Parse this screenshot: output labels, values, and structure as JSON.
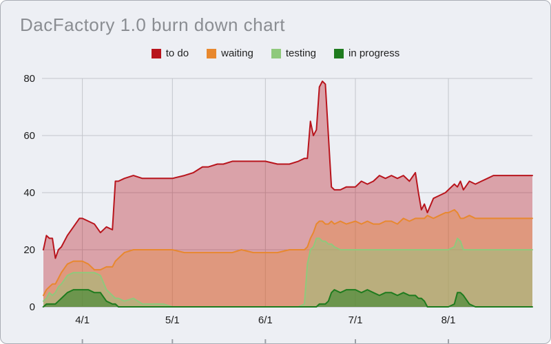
{
  "window": {
    "title": "DacFactory 1.0 burn down chart"
  },
  "chart_data": {
    "type": "area",
    "title": "DacFactory 1.0 burn down chart",
    "legend_position": "top",
    "grid": true,
    "xlim": [
      0,
      163
    ],
    "ylim": [
      0,
      80
    ],
    "y_ticks": [
      0,
      20,
      40,
      60,
      80
    ],
    "x_ticks": [
      {
        "label": "4/1",
        "x": 13
      },
      {
        "label": "5/1",
        "x": 43
      },
      {
        "label": "6/1",
        "x": 74
      },
      {
        "label": "7/1",
        "x": 104
      },
      {
        "label": "8/1",
        "x": 135
      }
    ],
    "x": [
      0,
      1,
      2,
      3,
      4,
      5,
      6,
      8,
      10,
      12,
      13,
      15,
      17,
      19,
      21,
      23,
      24,
      25,
      27,
      30,
      33,
      36,
      40,
      43,
      47,
      50,
      53,
      55,
      58,
      60,
      63,
      66,
      70,
      74,
      78,
      82,
      85,
      87,
      88,
      89,
      90,
      91,
      92,
      93,
      94,
      95,
      96,
      97,
      99,
      101,
      104,
      106,
      108,
      110,
      112,
      114,
      116,
      118,
      120,
      122,
      124,
      125,
      126,
      127,
      128,
      130,
      132,
      134,
      135,
      137,
      138,
      139,
      140,
      142,
      144,
      146,
      148,
      150,
      153,
      156,
      160,
      163
    ],
    "series": [
      {
        "name": "to do",
        "color": "#b8141c",
        "fill_opacity": 0.35,
        "values": [
          20,
          25,
          24,
          24,
          17,
          20,
          21,
          25,
          28,
          31,
          31,
          30,
          29,
          26,
          28,
          27,
          44,
          44,
          45,
          46,
          45,
          45,
          45,
          45,
          46,
          47,
          49,
          49,
          50,
          50,
          51,
          51,
          51,
          51,
          50,
          50,
          51,
          52,
          52,
          65,
          60,
          62,
          77,
          79,
          78,
          60,
          42,
          41,
          41,
          42,
          42,
          44,
          43,
          44,
          46,
          45,
          46,
          45,
          46,
          44,
          47,
          40,
          34,
          36,
          33,
          38,
          39,
          40,
          41,
          43,
          42,
          44,
          41,
          44,
          43,
          44,
          45,
          46,
          46,
          46,
          46,
          46
        ]
      },
      {
        "name": "waiting",
        "color": "#e8882e",
        "fill_opacity": 0.35,
        "values": [
          4,
          6,
          7,
          8,
          8,
          10,
          12,
          15,
          16,
          16,
          16,
          15,
          13,
          13,
          14,
          14,
          16,
          17,
          19,
          20,
          20,
          20,
          20,
          20,
          19,
          19,
          19,
          19,
          19,
          19,
          19,
          20,
          19,
          19,
          19,
          20,
          20,
          20,
          21,
          24,
          26,
          29,
          30,
          30,
          29,
          29,
          30,
          29,
          30,
          29,
          30,
          29,
          30,
          29,
          29,
          30,
          30,
          29,
          31,
          30,
          31,
          31,
          31,
          31,
          32,
          31,
          32,
          33,
          33,
          34,
          33,
          31,
          31,
          32,
          31,
          31,
          31,
          31,
          31,
          31,
          31,
          31
        ]
      },
      {
        "name": "testing",
        "color": "#8fc97c",
        "fill_opacity": 0.45,
        "values": [
          2,
          3,
          5,
          4,
          5,
          7,
          8,
          11,
          12,
          12,
          12,
          12,
          12,
          11,
          6,
          4,
          3,
          3,
          2,
          3,
          1,
          1,
          1,
          0,
          0,
          0,
          0,
          0,
          0,
          0,
          0,
          0,
          0,
          0,
          0,
          0,
          0,
          1,
          15,
          20,
          21,
          24,
          24,
          23,
          23,
          22,
          22,
          21,
          20,
          20,
          20,
          20,
          20,
          20,
          20,
          20,
          20,
          20,
          20,
          20,
          20,
          20,
          20,
          20,
          20,
          20,
          20,
          20,
          20,
          21,
          24,
          23,
          20,
          20,
          20,
          20,
          20,
          20,
          20,
          20,
          20,
          20
        ]
      },
      {
        "name": "in progress",
        "color": "#1e7b1e",
        "fill_opacity": 0.5,
        "values": [
          0,
          1,
          1,
          1,
          1,
          2,
          3,
          5,
          6,
          6,
          6,
          6,
          5,
          5,
          2,
          1,
          1,
          0,
          0,
          0,
          0,
          0,
          0,
          0,
          0,
          0,
          0,
          0,
          0,
          0,
          0,
          0,
          0,
          0,
          0,
          0,
          0,
          0,
          0,
          0,
          0,
          0,
          1,
          1,
          1,
          2,
          5,
          6,
          5,
          6,
          6,
          5,
          6,
          5,
          4,
          5,
          5,
          4,
          5,
          4,
          4,
          3,
          3,
          2,
          0,
          0,
          0,
          0,
          0,
          1,
          5,
          5,
          4,
          1,
          0,
          0,
          0,
          0,
          0,
          0,
          0,
          0
        ]
      }
    ],
    "colors": {
      "background": "#edeff4",
      "grid": "#c2c5cb",
      "baseline": "#9b9fa6",
      "axis_text": "#1c1c1c",
      "title": "#8a8d92"
    }
  }
}
